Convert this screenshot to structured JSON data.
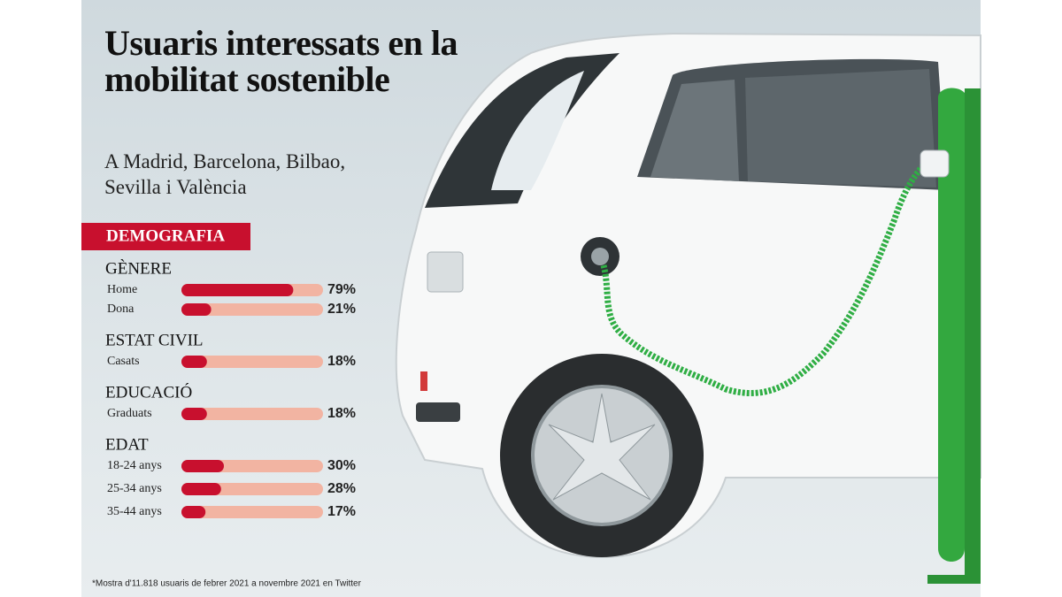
{
  "chart_data": {
    "type": "bar",
    "title": "Usuaris interessats en la mobilitat sostenible",
    "subtitle": "A Madrid, Barcelona, Bilbao, Sevilla i València",
    "section": "DEMOGRAFIA",
    "xlim": [
      0,
      100
    ],
    "color": "#c8102e",
    "track_color": "#f2b4a2",
    "groups": [
      {
        "name": "GÈNERE",
        "categories": [
          "Home",
          "Dona"
        ],
        "values": [
          79,
          21
        ],
        "value_labels": [
          "79%",
          "21%"
        ]
      },
      {
        "name": "ESTAT CIVIL",
        "categories": [
          "Casats"
        ],
        "values": [
          18
        ],
        "value_labels": [
          "18%"
        ]
      },
      {
        "name": "EDUCACIÓ",
        "categories": [
          "Graduats"
        ],
        "values": [
          18
        ],
        "value_labels": [
          "18%"
        ]
      },
      {
        "name": "EDAT",
        "categories": [
          "18-24 anys",
          "25-34 anys",
          "35-44 anys"
        ],
        "values": [
          30,
          28,
          17
        ],
        "value_labels": [
          "30%",
          "28%",
          "17%"
        ]
      }
    ],
    "footnote": "*Mostra d'11.818 usuaris de febrer 2021 a novembre 2021 en Twitter"
  }
}
